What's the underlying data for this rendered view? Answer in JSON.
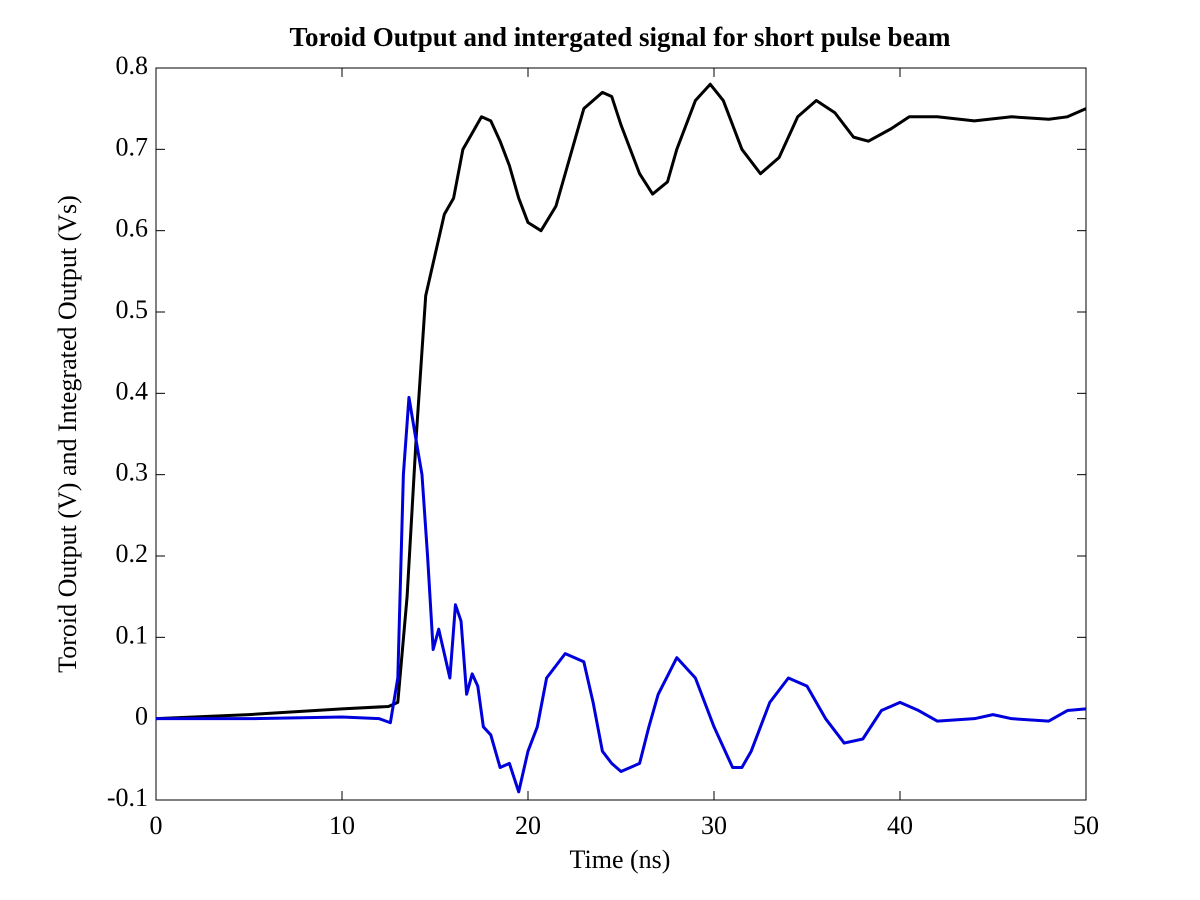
{
  "chart_data": {
    "type": "line",
    "title": "Toroid Output and intergated signal for short pulse beam",
    "x_label": "Time (ns)",
    "y_label": "Toroid Output (V) and Integrated Output (Vs)",
    "xlim": [
      0,
      50
    ],
    "xticks": [
      0,
      10,
      20,
      30,
      40,
      50
    ],
    "ylim": [
      -0.1,
      0.8
    ],
    "yticks": [
      -0.1,
      0,
      0.1,
      0.2,
      0.3,
      0.4,
      0.5,
      0.6,
      0.7,
      0.8
    ],
    "grid": false,
    "series": [
      {
        "color": "#000000",
        "x": [
          0,
          5,
          10,
          12.5,
          13,
          13.5,
          14,
          14.5,
          15,
          15.5,
          16,
          16.5,
          17,
          17.5,
          18,
          18.5,
          19,
          19.5,
          20,
          20.7,
          21.5,
          22,
          23,
          24,
          24.5,
          25,
          26,
          26.7,
          27.5,
          28,
          29,
          29.8,
          30.5,
          31.5,
          32.5,
          33.5,
          34.5,
          35.5,
          36.5,
          37.5,
          38.3,
          39.5,
          40.5,
          42,
          44,
          46,
          48,
          49,
          50
        ],
        "values": [
          0,
          0.005,
          0.012,
          0.015,
          0.02,
          0.15,
          0.35,
          0.52,
          0.57,
          0.62,
          0.64,
          0.7,
          0.72,
          0.74,
          0.735,
          0.71,
          0.68,
          0.64,
          0.61,
          0.6,
          0.63,
          0.67,
          0.75,
          0.77,
          0.765,
          0.73,
          0.67,
          0.645,
          0.66,
          0.7,
          0.76,
          0.78,
          0.76,
          0.7,
          0.67,
          0.69,
          0.74,
          0.76,
          0.745,
          0.715,
          0.71,
          0.725,
          0.74,
          0.74,
          0.735,
          0.74,
          0.737,
          0.74,
          0.75
        ]
      },
      {
        "color": "#0000dd",
        "x": [
          0,
          5,
          10,
          12,
          12.6,
          13,
          13.3,
          13.6,
          14,
          14.3,
          14.6,
          14.9,
          15.2,
          15.5,
          15.8,
          16.1,
          16.4,
          16.7,
          17,
          17.3,
          17.6,
          18,
          18.5,
          19,
          19.5,
          20,
          20.5,
          21,
          22,
          23,
          23.5,
          24,
          24.5,
          25,
          26,
          26.5,
          27,
          28,
          29,
          30,
          31,
          31.5,
          32,
          33,
          34,
          35,
          36,
          37,
          38,
          39,
          40,
          41,
          42,
          44,
          45,
          46,
          48,
          49,
          50
        ],
        "values": [
          0,
          0,
          0.002,
          0,
          -0.005,
          0.05,
          0.3,
          0.395,
          0.34,
          0.3,
          0.2,
          0.085,
          0.11,
          0.08,
          0.05,
          0.14,
          0.12,
          0.03,
          0.055,
          0.04,
          -0.01,
          -0.02,
          -0.06,
          -0.055,
          -0.09,
          -0.04,
          -0.01,
          0.05,
          0.08,
          0.07,
          0.02,
          -0.04,
          -0.055,
          -0.065,
          -0.055,
          -0.01,
          0.03,
          0.075,
          0.05,
          -0.01,
          -0.06,
          -0.06,
          -0.04,
          0.02,
          0.05,
          0.04,
          0,
          -0.03,
          -0.025,
          0.01,
          0.02,
          0.01,
          -0.003,
          0,
          0.005,
          0,
          -0.003,
          0.01,
          0.012
        ]
      }
    ]
  }
}
